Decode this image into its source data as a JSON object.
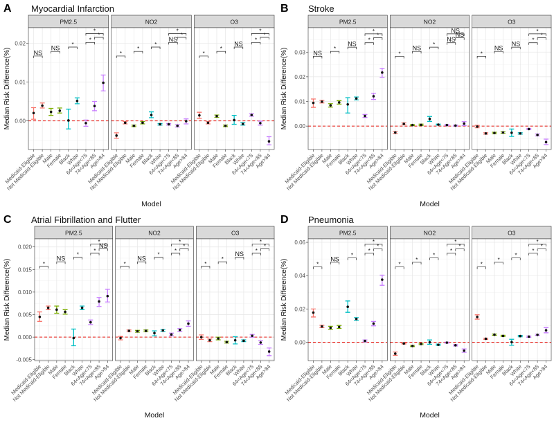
{
  "group_colors": [
    "#F8766D",
    "#7CAE00",
    "#00BFC4",
    "#C77CFF"
  ],
  "category_groups": [
    0,
    0,
    1,
    1,
    2,
    2,
    3,
    3,
    3
  ],
  "zero_line_color": "#E8302A",
  "bracket_pairs": [
    [
      0,
      1
    ],
    [
      2,
      3
    ],
    [
      4,
      5
    ],
    [
      6,
      7
    ],
    [
      7,
      8
    ],
    [
      6,
      8
    ]
  ],
  "chart_data": [
    {
      "type": "errorbar",
      "letter": "A",
      "title": "Myocardial Infarction",
      "xlabel": "Model",
      "ylabel": "Median Risk Difference(%)",
      "ylim": [
        -0.0074,
        0.024
      ],
      "yticks": [
        0,
        0.01,
        0.02
      ],
      "ytick_labels": [
        "0.00",
        "0.01",
        "0.02"
      ],
      "categories": [
        "Medicaid-Eligible",
        "Not Medicaid-Eligible",
        "Male",
        "Female",
        "Black",
        "White",
        "64<Age<75",
        "74<Age<85",
        "Age>84"
      ],
      "bracket_y": [
        0.0167,
        0.0179,
        0.019,
        0.0202,
        0.0215,
        0.0225
      ],
      "facets": [
        {
          "name": "PM2.5",
          "bracket_labels": [
            "NS",
            "NS",
            "*",
            "*",
            "*",
            "*"
          ],
          "points": [
            [
              0.002,
              0.0004,
              0.0034
            ],
            [
              0.0039,
              0.0033,
              0.0046
            ],
            [
              0.0023,
              0.0014,
              0.0032
            ],
            [
              0.0026,
              0.002,
              0.0033
            ],
            [
              0.0001,
              -0.0021,
              0.003
            ],
            [
              0.0051,
              0.0044,
              0.0059
            ],
            [
              -0.0006,
              -0.0014,
              0.0002
            ],
            [
              0.0038,
              0.0026,
              0.005
            ],
            [
              0.0098,
              0.0077,
              0.0118
            ]
          ]
        },
        {
          "name": "NO2",
          "bracket_labels": [
            "*",
            "*",
            "*",
            "NS",
            "*",
            "*"
          ],
          "points": [
            [
              -0.0038,
              -0.0045,
              -0.0031
            ],
            [
              -0.0005,
              -0.0008,
              -0.0002
            ],
            [
              -0.0013,
              -0.0015,
              -0.0011
            ],
            [
              -0.0005,
              -0.0008,
              -0.0002
            ],
            [
              0.0015,
              0.0008,
              0.0023
            ],
            [
              -0.0009,
              -0.0011,
              -0.0007
            ],
            [
              -0.0009,
              -0.0011,
              -0.0007
            ],
            [
              -0.0013,
              -0.0016,
              -0.001
            ],
            [
              -0.0001,
              -0.0008,
              0.0005
            ]
          ]
        },
        {
          "name": "O3",
          "bracket_labels": [
            "*",
            "*",
            "NS",
            "*",
            "*",
            "*"
          ],
          "points": [
            [
              0.0014,
              0.0006,
              0.0022
            ],
            [
              -0.0005,
              -0.0008,
              -0.0002
            ],
            [
              0.0012,
              0.0009,
              0.0015
            ],
            [
              -0.0013,
              -0.0015,
              -0.0011
            ],
            [
              0.0002,
              -0.0009,
              0.0014
            ],
            [
              -0.0008,
              -0.0011,
              -0.0005
            ],
            [
              0.0015,
              0.0012,
              0.0018
            ],
            [
              -0.0006,
              -0.0011,
              -0.0001
            ],
            [
              -0.0053,
              -0.0062,
              -0.0041
            ]
          ]
        }
      ]
    },
    {
      "type": "errorbar",
      "letter": "B",
      "title": "Stroke",
      "xlabel": "Model",
      "ylabel": "Median Risk Difference(%)",
      "ylim": [
        -0.0095,
        0.0399
      ],
      "yticks": [
        0,
        0.01,
        0.02,
        0.03
      ],
      "ytick_labels": [
        "0.00",
        "0.01",
        "0.02",
        "0.03"
      ],
      "categories": [
        "Medicaid-Eligible",
        "Not Medicaid-Eligible",
        "Male",
        "Female",
        "Black",
        "White",
        "64<Age<75",
        "74<Age<85",
        "Age>84"
      ],
      "bracket_y": [
        0.0283,
        0.0303,
        0.032,
        0.0338,
        0.0358,
        0.0374
      ],
      "facets": [
        {
          "name": "PM2.5",
          "bracket_labels": [
            "NS",
            "*",
            "NS",
            "*",
            "*",
            "*"
          ],
          "points": [
            [
              0.0094,
              0.0076,
              0.011
            ],
            [
              0.0099,
              0.0094,
              0.0104
            ],
            [
              0.0084,
              0.0077,
              0.0091
            ],
            [
              0.0096,
              0.0089,
              0.0103
            ],
            [
              0.0088,
              0.0053,
              0.0115
            ],
            [
              0.0112,
              0.0106,
              0.0118
            ],
            [
              0.0041,
              0.0035,
              0.0047
            ],
            [
              0.0121,
              0.0108,
              0.0133
            ],
            [
              0.0217,
              0.0198,
              0.0234
            ]
          ]
        },
        {
          "name": "NO2",
          "bracket_labels": [
            "*",
            "NS",
            "*",
            "NS",
            "NS",
            "NS"
          ],
          "points": [
            [
              -0.0026,
              -0.003,
              -0.0022
            ],
            [
              0.0009,
              0.0005,
              0.0013
            ],
            [
              0.0004,
              0.0002,
              0.0006
            ],
            [
              0.0005,
              0.0002,
              0.0008
            ],
            [
              0.0029,
              0.0019,
              0.0039
            ],
            [
              0.0006,
              0.0004,
              0.0008
            ],
            [
              0.0004,
              0.0002,
              0.0006
            ],
            [
              0.0002,
              0,
              0.0004
            ],
            [
              0.001,
              0.0002,
              0.0018
            ]
          ]
        },
        {
          "name": "O3",
          "bracket_labels": [
            "*",
            "NS",
            "NS",
            "*",
            "*",
            "*"
          ],
          "points": [
            [
              -0.0002,
              -0.0007,
              0.0003
            ],
            [
              -0.003,
              -0.0033,
              -0.0027
            ],
            [
              -0.0028,
              -0.0031,
              -0.0025
            ],
            [
              -0.0026,
              -0.0029,
              -0.0023
            ],
            [
              -0.0027,
              -0.0042,
              -0.0012
            ],
            [
              -0.003,
              -0.0033,
              -0.0027
            ],
            [
              -0.0012,
              -0.0014,
              -0.001
            ],
            [
              -0.0036,
              -0.004,
              -0.0032
            ],
            [
              -0.0065,
              -0.0075,
              -0.0053
            ]
          ]
        }
      ]
    },
    {
      "type": "errorbar",
      "letter": "C",
      "title": "Atrial Fibrillation and Flutter",
      "xlabel": "Model",
      "ylabel": "Median Risk Difference(%)",
      "ylim": [
        -0.0052,
        0.0218
      ],
      "yticks": [
        -0.005,
        0,
        0.005,
        0.01,
        0.015,
        0.02
      ],
      "ytick_labels": [
        "-0.005",
        "0.000",
        "0.005",
        "0.010",
        "0.015",
        "0.020"
      ],
      "categories": [
        "Medicaid-Eligible",
        "Not Medicaid-Eligible",
        "Male",
        "Female",
        "Black",
        "White",
        "64<Age<75",
        "74<Age<85",
        "Age>84"
      ],
      "bracket_y": [
        0.0157,
        0.0167,
        0.0177,
        0.0186,
        0.0196,
        0.0206
      ],
      "facets": [
        {
          "name": "PM2.5",
          "bracket_labels": [
            "*",
            "NS",
            "*",
            "*",
            "NS",
            "*"
          ],
          "points": [
            [
              0.0045,
              0.0035,
              0.0056
            ],
            [
              0.0065,
              0.0061,
              0.0069
            ],
            [
              0.0061,
              0.0053,
              0.0069
            ],
            [
              0.0056,
              0.0051,
              0.0061
            ],
            [
              -0.0002,
              -0.0019,
              0.0018
            ],
            [
              0.0065,
              0.0061,
              0.0069
            ],
            [
              0.0033,
              0.0028,
              0.0038
            ],
            [
              0.0079,
              0.0068,
              0.0088
            ],
            [
              0.0091,
              0.0078,
              0.0106
            ]
          ]
        },
        {
          "name": "NO2",
          "bracket_labels": [
            "*",
            "NS",
            "*",
            "*",
            "*",
            "*"
          ],
          "points": [
            [
              -0.0002,
              -0.0006,
              0.0002
            ],
            [
              0.0014,
              0.0012,
              0.0016
            ],
            [
              0.0013,
              0.0011,
              0.0015
            ],
            [
              0.0014,
              0.0012,
              0.0016
            ],
            [
              0.0009,
              0.0003,
              0.0014
            ],
            [
              0.0015,
              0.0013,
              0.0017
            ],
            [
              0.0006,
              0.0003,
              0.0009
            ],
            [
              0.0016,
              0.0013,
              0.0019
            ],
            [
              0.003,
              0.0024,
              0.0036
            ]
          ]
        },
        {
          "name": "O3",
          "bracket_labels": [
            "*",
            "*",
            "NS",
            "*",
            "*",
            "*"
          ],
          "points": [
            [
              0,
              -0.0005,
              0.0005
            ],
            [
              -0.0007,
              -0.001,
              -0.0004
            ],
            [
              -0.0003,
              -0.0006,
              0
            ],
            [
              -0.0011,
              -0.0013,
              -0.0009
            ],
            [
              -0.0007,
              -0.0015,
              0.0001
            ],
            [
              -0.0008,
              -0.001,
              -0.0006
            ],
            [
              0.0003,
              0,
              0.0006
            ],
            [
              -0.0012,
              -0.0016,
              -0.0008
            ],
            [
              -0.0032,
              -0.0041,
              -0.0024
            ]
          ]
        }
      ]
    },
    {
      "type": "errorbar",
      "letter": "D",
      "title": "Pneumonia",
      "xlabel": "Model",
      "ylabel": "Median Risk Difference(%)",
      "ylim": [
        -0.011,
        0.0621
      ],
      "yticks": [
        0,
        0.02,
        0.04,
        0.06
      ],
      "ytick_labels": [
        "0.00",
        "0.02",
        "0.04",
        "0.06"
      ],
      "categories": [
        "Medicaid-Eligible",
        "Not Medicaid-Eligible",
        "Male",
        "Female",
        "Black",
        "White",
        "64<Age<75",
        "74<Age<85",
        "Age>84"
      ],
      "bracket_y": [
        0.0452,
        0.048,
        0.0506,
        0.0534,
        0.056,
        0.0588
      ],
      "facets": [
        {
          "name": "PM2.5",
          "bracket_labels": [
            "*",
            "NS",
            "*",
            "*",
            "*",
            "*"
          ],
          "points": [
            [
              0.0178,
              0.0152,
              0.02
            ],
            [
              0.0095,
              0.0088,
              0.0102
            ],
            [
              0.0087,
              0.0078,
              0.0096
            ],
            [
              0.0092,
              0.0083,
              0.0101
            ],
            [
              0.0213,
              0.018,
              0.0248
            ],
            [
              0.014,
              0.0132,
              0.0148
            ],
            [
              0.0008,
              0.0002,
              0.0014
            ],
            [
              0.0112,
              0.0099,
              0.0125
            ],
            [
              0.0376,
              0.0342,
              0.0403
            ]
          ]
        },
        {
          "name": "NO2",
          "bracket_labels": [
            "*",
            "*",
            "*",
            "*",
            "*",
            "*"
          ],
          "points": [
            [
              -0.0068,
              -0.0078,
              -0.0058
            ],
            [
              -0.0007,
              -0.001,
              -0.0004
            ],
            [
              -0.0022,
              -0.0026,
              -0.0018
            ],
            [
              -0.001,
              -0.0014,
              -0.0006
            ],
            [
              0,
              -0.0012,
              0.0014
            ],
            [
              -0.0015,
              -0.0019,
              -0.0011
            ],
            [
              -0.0002,
              -0.0005,
              0.0001
            ],
            [
              -0.0018,
              -0.0022,
              -0.0014
            ],
            [
              -0.005,
              -0.006,
              -0.004
            ]
          ]
        },
        {
          "name": "O3",
          "bracket_labels": [
            "*",
            "*",
            "*",
            "*",
            "*",
            "*"
          ],
          "points": [
            [
              0.0152,
              0.0139,
              0.0165
            ],
            [
              0.0021,
              0.0017,
              0.0025
            ],
            [
              0.0046,
              0.0042,
              0.005
            ],
            [
              0.0038,
              0.0034,
              0.0042
            ],
            [
              0.0001,
              -0.0018,
              0.0018
            ],
            [
              0.0037,
              0.0033,
              0.0041
            ],
            [
              0.0034,
              0.003,
              0.0038
            ],
            [
              0.0045,
              0.0041,
              0.0049
            ],
            [
              0.0072,
              0.0057,
              0.0088
            ]
          ]
        }
      ]
    }
  ]
}
